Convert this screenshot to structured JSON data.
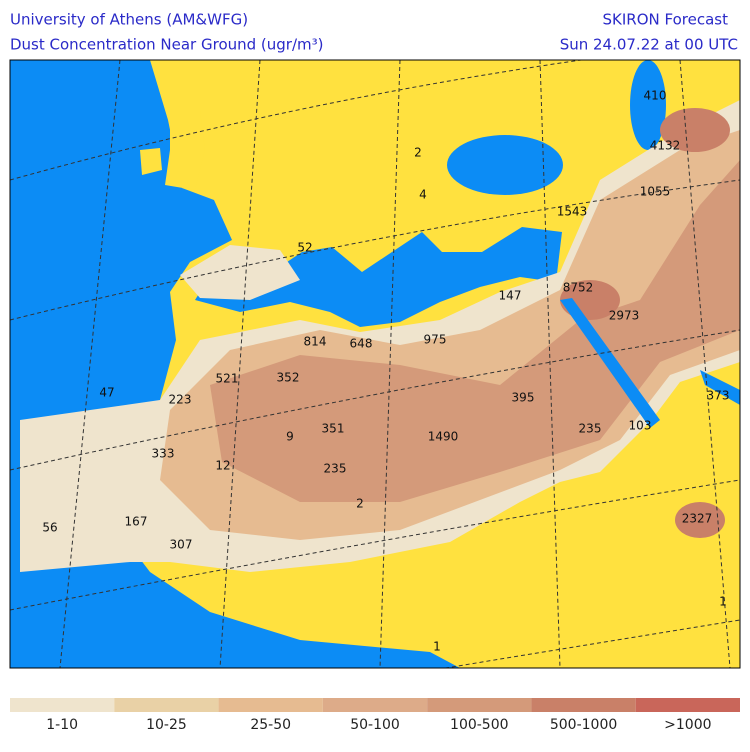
{
  "header": {
    "left_title": "University of Athens (AM&WFG)",
    "left_subtitle": "Dust Concentration Near Ground (ugr/m³)",
    "right_title": "SKIRON Forecast",
    "right_subtitle": "Sun 24.07.22 at 00 UTC"
  },
  "map_labels": [
    410,
    4132,
    1055,
    1543,
    2,
    4,
    52,
    147,
    8752,
    2973,
    814,
    648,
    975,
    521,
    352,
    223,
    47,
    395,
    373,
    9,
    351,
    1490,
    235,
    103,
    333,
    12,
    235,
    2,
    2327,
    56,
    167,
    307,
    1,
    1
  ],
  "legend": [
    {
      "label": "1-10",
      "color": "#efe4cd"
    },
    {
      "label": "10-25",
      "color": "#e9d1a6"
    },
    {
      "label": "25-50",
      "color": "#e6bb91"
    },
    {
      "label": "50-100",
      "color": "#ddab89"
    },
    {
      "label": "100-500",
      "color": "#d49a7a"
    },
    {
      "label": "500-1000",
      "color": "#c98068"
    },
    {
      "label": ">1000",
      "color": "#c9665a"
    }
  ]
}
